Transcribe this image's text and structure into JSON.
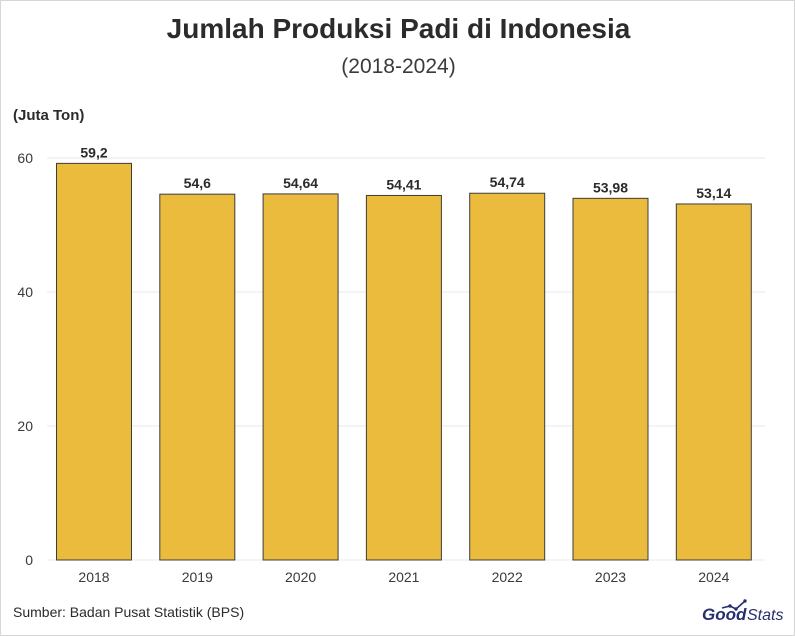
{
  "title": "Jumlah Produksi Padi di Indonesia",
  "subtitle": "(2018-2024)",
  "unit_label": "(Juta Ton)",
  "source": "Sumber: Badan Pusat Statistik (BPS)",
  "logo": {
    "text": "Stats",
    "brand": "GoodStats",
    "bold_part": "Good"
  },
  "colors": {
    "bar": "#EBBB3D",
    "bar_stroke": "#3d3d3d",
    "grid": "#e8e8e8",
    "logo": "#27306f"
  },
  "chart_data": {
    "type": "bar",
    "categories": [
      "2018",
      "2019",
      "2020",
      "2021",
      "2022",
      "2023",
      "2024"
    ],
    "values": [
      59.2,
      54.6,
      54.64,
      54.41,
      54.74,
      53.98,
      53.14
    ],
    "value_labels": [
      "59,2",
      "54,6",
      "54,64",
      "54,41",
      "54,74",
      "53,98",
      "53,14"
    ],
    "title": "Jumlah Produksi Padi di Indonesia",
    "ylabel": "(Juta Ton)",
    "ylim": [
      0,
      60
    ],
    "yticks": [
      0,
      20,
      40,
      60
    ],
    "grid": true
  }
}
